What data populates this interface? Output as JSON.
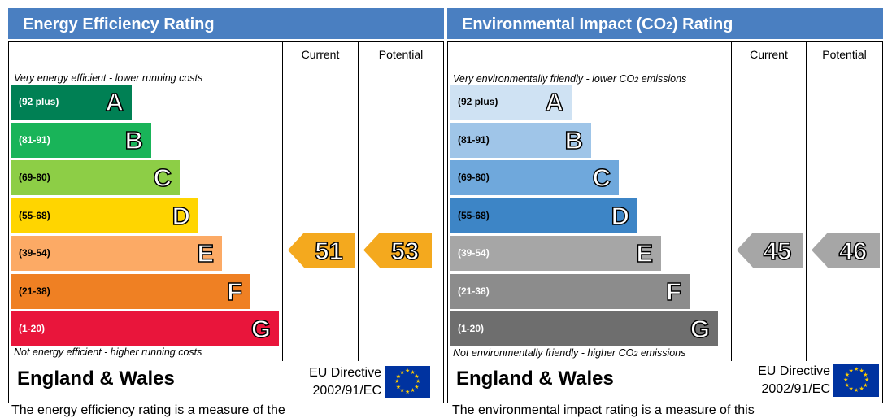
{
  "colors": {
    "header_bg": "#4a7fc1",
    "ee_bands": [
      "#008054",
      "#19b459",
      "#8dce46",
      "#ffd500",
      "#fcaa65",
      "#ef8023",
      "#e9153b"
    ],
    "co2_bands": [
      "#cfe2f3",
      "#9fc5e8",
      "#6fa8dc",
      "#3d85c6",
      "#a6a6a6",
      "#8c8c8c",
      "#6e6e6e"
    ],
    "ee_arrow": "#f4a91e",
    "co2_arrow": "#a6a6a6"
  },
  "energy": {
    "title": "Energy Efficiency Rating",
    "col_current": "Current",
    "col_potential": "Potential",
    "top_caption": "Very energy efficient - lower running costs",
    "bottom_caption": "Not energy efficient - higher running costs",
    "footer_region": "England & Wales",
    "footer_directive_line1": "EU Directive",
    "footer_directive_line2": "2002/91/EC",
    "below_text": "The energy efficiency rating is a measure of the"
  },
  "environment": {
    "title_prefix": "Environmental Impact (CO",
    "title_sub": "2",
    "title_suffix": ") Rating",
    "col_current": "Current",
    "col_potential": "Potential",
    "top_caption_prefix": "Very environmentally friendly - lower CO",
    "top_caption_sub": "2",
    "top_caption_suffix": " emissions",
    "bottom_caption_prefix": "Not environmentally friendly - higher CO",
    "bottom_caption_sub": "2",
    "bottom_caption_suffix": " emissions",
    "footer_region": "England & Wales",
    "footer_directive_line1": "EU Directive",
    "footer_directive_line2": "2002/91/EC",
    "below_text": "The environmental impact rating is a measure of this"
  },
  "chart_data": [
    {
      "type": "bar",
      "title": "Energy Efficiency Rating",
      "categories": [
        "A",
        "B",
        "C",
        "D",
        "E",
        "F",
        "G"
      ],
      "ranges": [
        "(92 plus)",
        "(81-91)",
        "(69-80)",
        "(55-68)",
        "(39-54)",
        "(21-38)",
        "(1-20)"
      ],
      "current": {
        "value": 51,
        "band": "E"
      },
      "potential": {
        "value": 53,
        "band": "E"
      }
    },
    {
      "type": "bar",
      "title": "Environmental Impact (CO2) Rating",
      "categories": [
        "A",
        "B",
        "C",
        "D",
        "E",
        "F",
        "G"
      ],
      "ranges": [
        "(92 plus)",
        "(81-91)",
        "(69-80)",
        "(55-68)",
        "(39-54)",
        "(21-38)",
        "(1-20)"
      ],
      "current": {
        "value": 45,
        "band": "E"
      },
      "potential": {
        "value": 46,
        "band": "E"
      }
    }
  ]
}
